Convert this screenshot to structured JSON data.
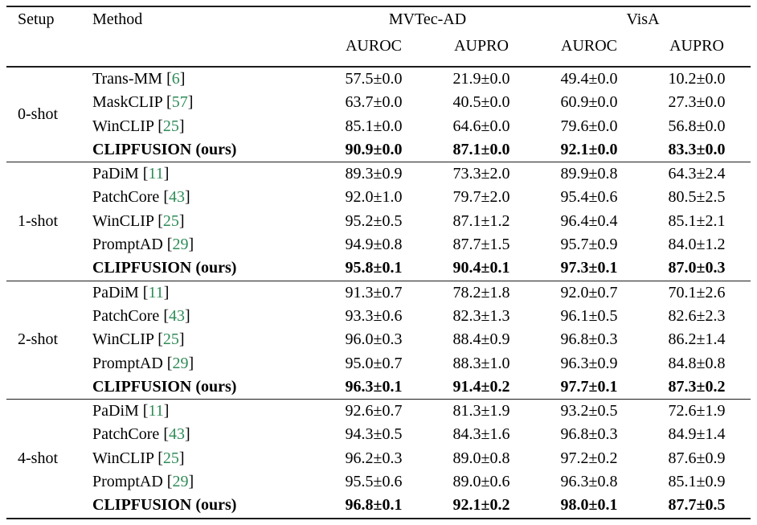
{
  "colors": {
    "citation": "#2E8B57",
    "rule": "#1c1c1c",
    "text": "#000000",
    "background": "#ffffff"
  },
  "table": {
    "headers": {
      "setup": "Setup",
      "method": "Method",
      "dataset1": "MVTec-AD",
      "dataset2": "VisA",
      "metrics": [
        "AUROC",
        "AUPRO",
        "AUROC",
        "AUPRO"
      ]
    },
    "groups": [
      {
        "setup": "0-shot",
        "rows": [
          {
            "method": "Trans-MM",
            "cite": "[6]",
            "bold": false,
            "values": [
              "57.5±0.0",
              "21.9±0.0",
              "49.4±0.0",
              "10.2±0.0"
            ]
          },
          {
            "method": "MaskCLIP",
            "cite": "[57]",
            "bold": false,
            "values": [
              "63.7±0.0",
              "40.5±0.0",
              "60.9±0.0",
              "27.3±0.0"
            ]
          },
          {
            "method": "WinCLIP",
            "cite": "[25]",
            "bold": false,
            "values": [
              "85.1±0.0",
              "64.6±0.0",
              "79.6±0.0",
              "56.8±0.0"
            ]
          },
          {
            "method": "CLIPFUSION (ours)",
            "cite": null,
            "bold": true,
            "values": [
              "90.9±0.0",
              "87.1±0.0",
              "92.1±0.0",
              "83.3±0.0"
            ]
          }
        ]
      },
      {
        "setup": "1-shot",
        "rows": [
          {
            "method": "PaDiM",
            "cite": "[11]",
            "bold": false,
            "values": [
              "89.3±0.9",
              "73.3±2.0",
              "89.9±0.8",
              "64.3±2.4"
            ]
          },
          {
            "method": "PatchCore",
            "cite": "[43]",
            "bold": false,
            "values": [
              "92.0±1.0",
              "79.7±2.0",
              "95.4±0.6",
              "80.5±2.5"
            ]
          },
          {
            "method": "WinCLIP",
            "cite": "[25]",
            "bold": false,
            "values": [
              "95.2±0.5",
              "87.1±1.2",
              "96.4±0.4",
              "85.1±2.1"
            ]
          },
          {
            "method": "PromptAD",
            "cite": "[29]",
            "bold": false,
            "values": [
              "94.9±0.8",
              "87.7±1.5",
              "95.7±0.9",
              "84.0±1.2"
            ]
          },
          {
            "method": "CLIPFUSION (ours)",
            "cite": null,
            "bold": true,
            "values": [
              "95.8±0.1",
              "90.4±0.1",
              "97.3±0.1",
              "87.0±0.3"
            ]
          }
        ]
      },
      {
        "setup": "2-shot",
        "rows": [
          {
            "method": "PaDiM",
            "cite": "[11]",
            "bold": false,
            "values": [
              "91.3±0.7",
              "78.2±1.8",
              "92.0±0.7",
              "70.1±2.6"
            ]
          },
          {
            "method": "PatchCore",
            "cite": "[43]",
            "bold": false,
            "values": [
              "93.3±0.6",
              "82.3±1.3",
              "96.1±0.5",
              "82.6±2.3"
            ]
          },
          {
            "method": "WinCLIP",
            "cite": "[25]",
            "bold": false,
            "values": [
              "96.0±0.3",
              "88.4±0.9",
              "96.8±0.3",
              "86.2±1.4"
            ]
          },
          {
            "method": "PromptAD",
            "cite": "[29]",
            "bold": false,
            "values": [
              "95.0±0.7",
              "88.3±1.0",
              "96.3±0.9",
              "84.8±0.8"
            ]
          },
          {
            "method": "CLIPFUSION (ours)",
            "cite": null,
            "bold": true,
            "values": [
              "96.3±0.1",
              "91.4±0.2",
              "97.7±0.1",
              "87.3±0.2"
            ]
          }
        ]
      },
      {
        "setup": "4-shot",
        "rows": [
          {
            "method": "PaDiM",
            "cite": "[11]",
            "bold": false,
            "values": [
              "92.6±0.7",
              "81.3±1.9",
              "93.2±0.5",
              "72.6±1.9"
            ]
          },
          {
            "method": "PatchCore",
            "cite": "[43]",
            "bold": false,
            "values": [
              "94.3±0.5",
              "84.3±1.6",
              "96.8±0.3",
              "84.9±1.4"
            ]
          },
          {
            "method": "WinCLIP",
            "cite": "[25]",
            "bold": false,
            "values": [
              "96.2±0.3",
              "89.0±0.8",
              "97.2±0.2",
              "87.6±0.9"
            ]
          },
          {
            "method": "PromptAD",
            "cite": "[29]",
            "bold": false,
            "values": [
              "95.5±0.6",
              "89.0±0.6",
              "96.3±0.8",
              "85.1±0.9"
            ]
          },
          {
            "method": "CLIPFUSION (ours)",
            "cite": null,
            "bold": true,
            "values": [
              "96.8±0.1",
              "92.1±0.2",
              "98.0±0.1",
              "87.7±0.5"
            ]
          }
        ]
      }
    ]
  }
}
